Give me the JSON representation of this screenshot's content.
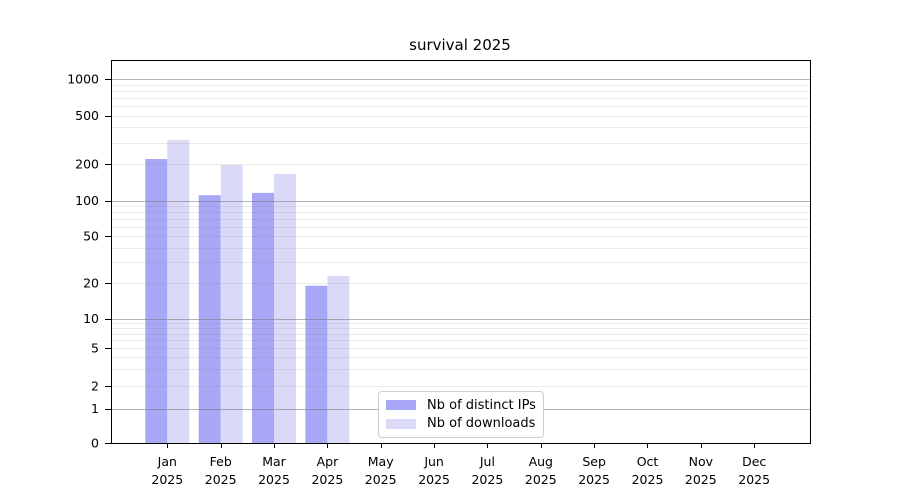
{
  "chart_data": {
    "type": "bar",
    "title": "survival 2025",
    "categories": [
      "Jan",
      "Feb",
      "Mar",
      "Apr",
      "May",
      "Jun",
      "Jul",
      "Aug",
      "Sep",
      "Oct",
      "Nov",
      "Dec"
    ],
    "category_year": "2025",
    "series": [
      {
        "name": "Nb of distinct IPs",
        "color": "#a7a7f5",
        "values": [
          220,
          111,
          116,
          19,
          0,
          0,
          0,
          0,
          0,
          0,
          0,
          0
        ]
      },
      {
        "name": "Nb of downloads",
        "color": "#dadaf8",
        "values": [
          315,
          197,
          166,
          23,
          0,
          0,
          0,
          0,
          0,
          0,
          0,
          0
        ]
      }
    ],
    "yticks": [
      0,
      1,
      2,
      5,
      10,
      20,
      50,
      100,
      200,
      500,
      1000
    ],
    "yscale": "symlog",
    "ylim": [
      0,
      1400
    ],
    "xlabel": "",
    "ylabel": "",
    "grid": true,
    "legend_position": "lower center"
  }
}
